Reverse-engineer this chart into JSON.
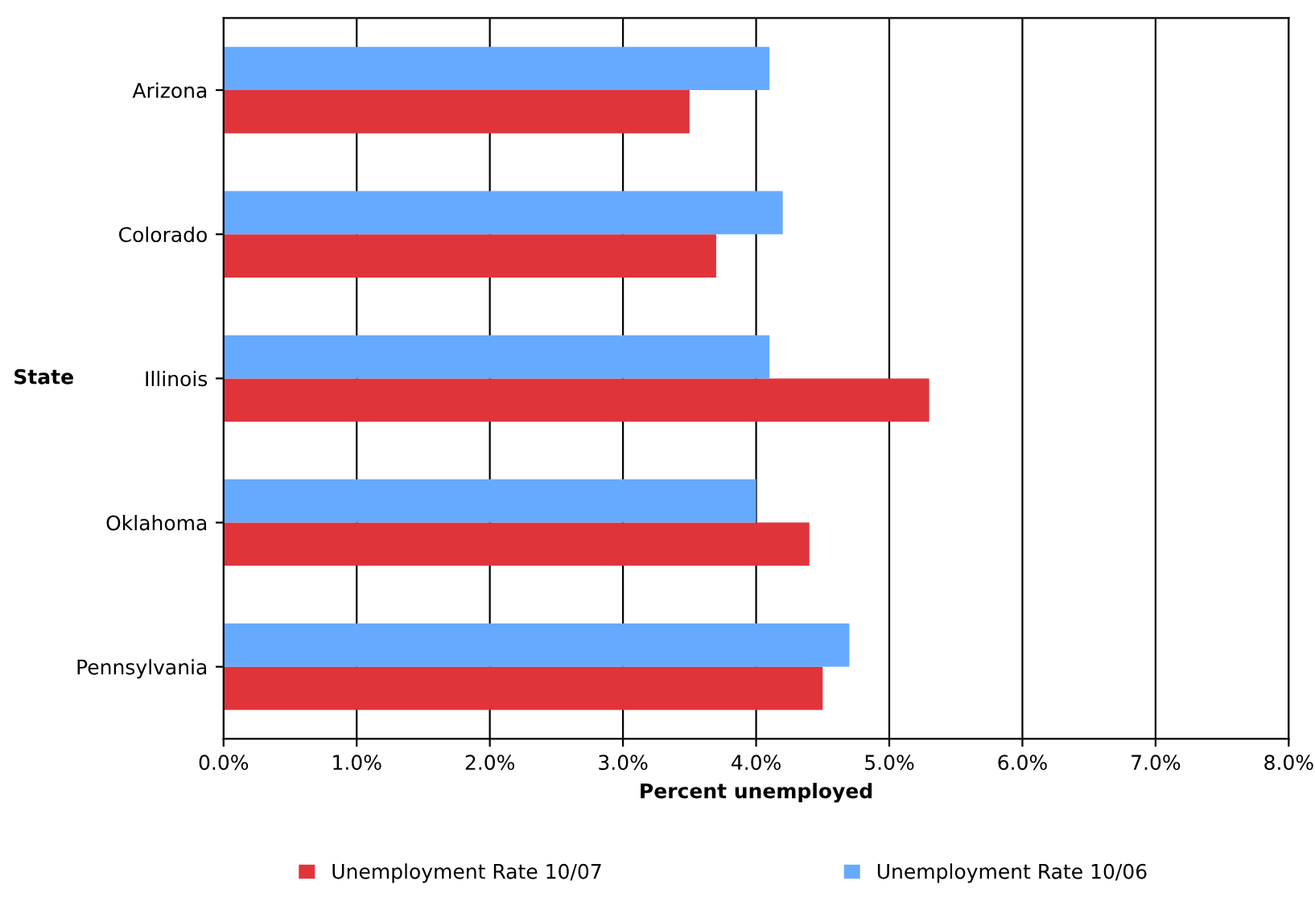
{
  "chart_data": {
    "type": "bar",
    "orientation": "horizontal",
    "categories": [
      "Arizona",
      "Colorado",
      "Illinois",
      "Oklahoma",
      "Pennsylvania"
    ],
    "series": [
      {
        "name": "Unemployment Rate 10/07",
        "color": "#e0343a",
        "values": [
          3.5,
          3.7,
          5.3,
          4.4,
          4.5
        ]
      },
      {
        "name": "Unemployment Rate 10/06",
        "color": "#66aaff",
        "values": [
          4.1,
          4.2,
          4.1,
          4.0,
          4.7
        ]
      }
    ],
    "xlabel": "Percent unemployed",
    "ylabel": "State",
    "xlim": [
      0,
      8
    ],
    "xticks": [
      {
        "value": 0,
        "label": "0.0%"
      },
      {
        "value": 1,
        "label": "1.0%"
      },
      {
        "value": 2,
        "label": "2.0%"
      },
      {
        "value": 3,
        "label": "3.0%"
      },
      {
        "value": 4,
        "label": "4.0%"
      },
      {
        "value": 5,
        "label": "5.0%"
      },
      {
        "value": 6,
        "label": "6.0%"
      },
      {
        "value": 7,
        "label": "7.0%"
      },
      {
        "value": 8,
        "label": "8.0%"
      }
    ],
    "grid": "x",
    "legend": "bottom"
  }
}
